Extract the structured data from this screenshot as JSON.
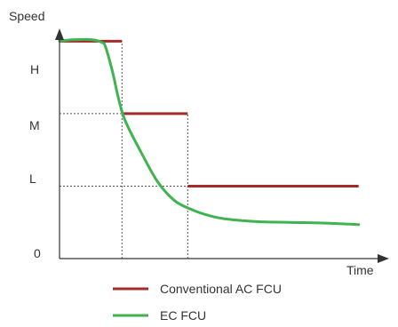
{
  "chart_data": {
    "type": "line",
    "xlabel": "Time",
    "ylabel": "Speed",
    "ytick_labels": [
      "0",
      "L",
      "M",
      "H"
    ],
    "xlim": [
      0,
      10
    ],
    "ylim": [
      0,
      3.2
    ],
    "series": [
      {
        "name": "Conventional AC FCU",
        "color": "#a52a2a",
        "kind": "step",
        "segments": [
          {
            "x_start": 0,
            "x_end": 1.9,
            "y": 3
          },
          {
            "x_start": 1.9,
            "x_end": 3.9,
            "y": 2
          },
          {
            "x_start": 3.9,
            "x_end": 9.1,
            "y": 1
          }
        ]
      },
      {
        "name": "EC FCU",
        "color": "#3fb34f",
        "kind": "smooth",
        "points": [
          [
            0.0,
            3.0
          ],
          [
            0.4,
            3.02
          ],
          [
            1.0,
            3.02
          ],
          [
            1.3,
            2.98
          ],
          [
            1.4,
            2.92
          ],
          [
            1.6,
            2.6
          ],
          [
            1.8,
            2.2
          ],
          [
            2.0,
            1.9
          ],
          [
            2.5,
            1.45
          ],
          [
            3.0,
            1.05
          ],
          [
            3.5,
            0.8
          ],
          [
            4.0,
            0.68
          ],
          [
            4.5,
            0.6
          ],
          [
            5.0,
            0.55
          ],
          [
            6.0,
            0.51
          ],
          [
            7.0,
            0.5
          ],
          [
            8.0,
            0.49
          ],
          [
            9.1,
            0.47
          ]
        ]
      }
    ],
    "guides": [
      {
        "y": 2,
        "x_end": 1.9
      },
      {
        "y": 1,
        "x_end": 3.9
      },
      {
        "x": 1.9,
        "y_end": 3
      },
      {
        "x": 3.9,
        "y_end": 2
      }
    ],
    "grid": false,
    "legend_position": "bottom-center"
  }
}
